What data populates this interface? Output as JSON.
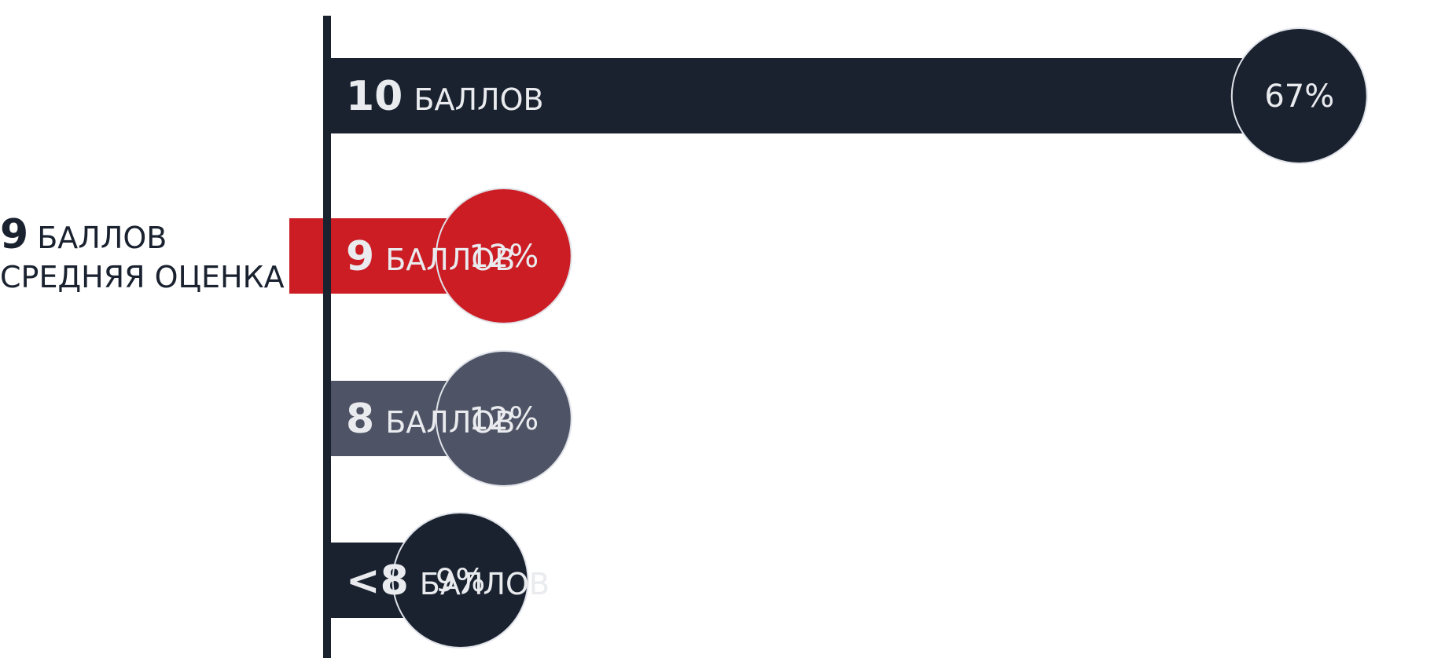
{
  "colors": {
    "axis": "#1a2230",
    "dark": "#1a2230",
    "red": "#cc1c24",
    "gray": "#4e5365",
    "label_text": "#e9ebee",
    "circle_border": "#dfe2e8"
  },
  "summary": {
    "value": "9",
    "unit": "БАЛЛОВ",
    "caption": "СРЕДНЯЯ ОЦЕНКА"
  },
  "chart_data": {
    "type": "bar",
    "orientation": "horizontal",
    "categories": [
      "10",
      "9",
      "8",
      "<8"
    ],
    "unit_label": "БАЛЛОВ",
    "values": [
      67,
      12,
      12,
      9
    ],
    "value_labels": [
      "67%",
      "12%",
      "12%",
      "9%"
    ],
    "bar_colors": [
      "#1a2230",
      "#cc1c24",
      "#4e5365",
      "#1a2230"
    ],
    "highlighted_category": "9",
    "title": "",
    "xlabel": "",
    "ylabel": "",
    "xlim": [
      0,
      75
    ],
    "grid": false,
    "legend": "none"
  }
}
